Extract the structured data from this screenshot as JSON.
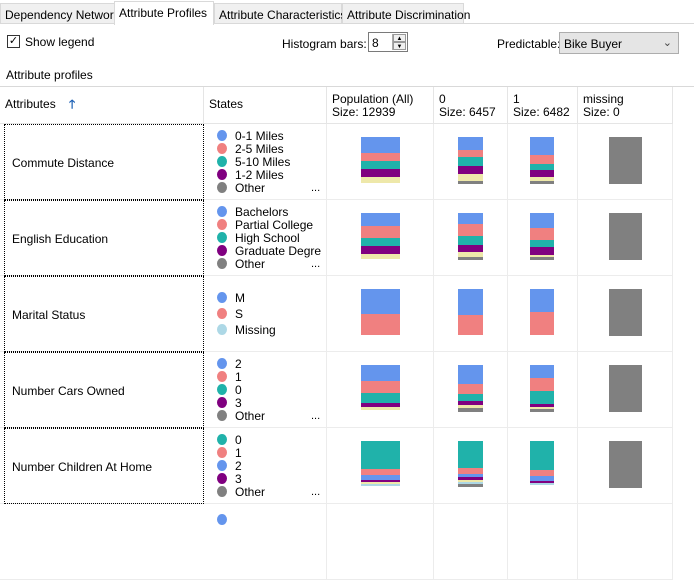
{
  "tabs": [
    {
      "label": "Dependency Network"
    },
    {
      "label": "Attribute Profiles",
      "active": true
    },
    {
      "label": "Attribute Characteristics"
    },
    {
      "label": "Attribute Discrimination"
    }
  ],
  "toolbar": {
    "show_legend_label": "Show legend",
    "show_legend_checked": true,
    "histogram_bars_label": "Histogram bars:",
    "histogram_bars_value": "8",
    "predictable_label": "Predictable:",
    "predictable_value": "Bike Buyer"
  },
  "section_title": "Attribute profiles",
  "colors": {
    "blue": "#6495ED",
    "pink": "#F08080",
    "teal": "#20B2AA",
    "purple": "#800080",
    "yellow": "#EEE8AA",
    "gray": "#808080",
    "lightblue": "#ADD8E6"
  },
  "columns": {
    "attributes": "Attributes",
    "sort_icon": "arrow-up-icon",
    "states": "States",
    "pop": {
      "name": "Population (All)",
      "size": "Size: 12939"
    },
    "c0": {
      "name": "0",
      "size": "Size: 6457"
    },
    "c1": {
      "name": "1",
      "size": "Size: 6482"
    },
    "missing": {
      "name": "missing",
      "size": "Size: 0"
    }
  },
  "ellipsis": "...",
  "rows": [
    {
      "attribute": "Commute Distance",
      "states": [
        {
          "label": "0-1 Miles",
          "color": "blue"
        },
        {
          "label": "2-5 Miles",
          "color": "pink"
        },
        {
          "label": "5-10 Miles",
          "color": "teal"
        },
        {
          "label": "1-2 Miles",
          "color": "purple"
        },
        {
          "label": "Other",
          "color": "gray"
        }
      ],
      "pop": [
        [
          "blue",
          34
        ],
        [
          "pink",
          17
        ],
        [
          "teal",
          17
        ],
        [
          "purple",
          17
        ],
        [
          "yellow",
          13
        ]
      ],
      "c0": [
        [
          "blue",
          27
        ],
        [
          "pink",
          16
        ],
        [
          "teal",
          19
        ],
        [
          "purple",
          17
        ],
        [
          "yellow",
          15
        ],
        [
          "gray",
          6
        ]
      ],
      "c1": [
        [
          "blue",
          38
        ],
        [
          "pink",
          19
        ],
        [
          "teal",
          13
        ],
        [
          "purple",
          15
        ],
        [
          "yellow",
          9
        ],
        [
          "gray",
          6
        ]
      ],
      "missing": [
        [
          "gray",
          100
        ]
      ],
      "more": true
    },
    {
      "attribute": "English Education",
      "states": [
        {
          "label": "Bachelors",
          "color": "blue"
        },
        {
          "label": "Partial College",
          "color": "pink"
        },
        {
          "label": "High School",
          "color": "teal"
        },
        {
          "label": "Graduate Degre",
          "color": "purple"
        },
        {
          "label": "Other",
          "color": "gray"
        }
      ],
      "pop": [
        [
          "blue",
          28
        ],
        [
          "pink",
          26
        ],
        [
          "teal",
          17
        ],
        [
          "purple",
          17
        ],
        [
          "yellow",
          9
        ]
      ],
      "c0": [
        [
          "blue",
          23
        ],
        [
          "pink",
          26
        ],
        [
          "teal",
          19
        ],
        [
          "purple",
          15
        ],
        [
          "yellow",
          11
        ],
        [
          "gray",
          6
        ]
      ],
      "c1": [
        [
          "blue",
          32
        ],
        [
          "pink",
          26
        ],
        [
          "teal",
          15
        ],
        [
          "purple",
          17
        ],
        [
          "yellow",
          4
        ],
        [
          "gray",
          6
        ]
      ],
      "missing": [
        [
          "gray",
          100
        ]
      ],
      "more": true
    },
    {
      "attribute": "Marital Status",
      "states": [
        {
          "label": "M",
          "color": "blue"
        },
        {
          "label": "S",
          "color": "pink"
        },
        {
          "label": "Missing",
          "color": "lightblue"
        }
      ],
      "pop": [
        [
          "blue",
          53
        ],
        [
          "pink",
          45
        ]
      ],
      "c0": [
        [
          "blue",
          55
        ],
        [
          "pink",
          43
        ]
      ],
      "c1": [
        [
          "blue",
          49
        ],
        [
          "pink",
          49
        ]
      ],
      "missing": [
        [
          "gray",
          100
        ]
      ],
      "more": false
    },
    {
      "attribute": "Number Cars Owned",
      "states": [
        {
          "label": "2",
          "color": "blue"
        },
        {
          "label": "1",
          "color": "pink"
        },
        {
          "label": "0",
          "color": "teal"
        },
        {
          "label": "3",
          "color": "purple"
        },
        {
          "label": "Other",
          "color": "gray"
        }
      ],
      "pop": [
        [
          "blue",
          34
        ],
        [
          "pink",
          26
        ],
        [
          "teal",
          21
        ],
        [
          "purple",
          9
        ],
        [
          "yellow",
          6
        ]
      ],
      "c0": [
        [
          "blue",
          40
        ],
        [
          "pink",
          21
        ],
        [
          "teal",
          15
        ],
        [
          "purple",
          9
        ],
        [
          "yellow",
          6
        ],
        [
          "gray",
          9
        ]
      ],
      "c1": [
        [
          "blue",
          28
        ],
        [
          "pink",
          28
        ],
        [
          "teal",
          28
        ],
        [
          "purple",
          6
        ],
        [
          "yellow",
          4
        ],
        [
          "gray",
          6
        ]
      ],
      "missing": [
        [
          "gray",
          100
        ]
      ],
      "more": true
    },
    {
      "attribute": "Number Children At Home",
      "states": [
        {
          "label": "0",
          "color": "teal"
        },
        {
          "label": "1",
          "color": "pink"
        },
        {
          "label": "2",
          "color": "blue"
        },
        {
          "label": "3",
          "color": "purple"
        },
        {
          "label": "Other",
          "color": "gray"
        }
      ],
      "pop": [
        [
          "teal",
          60
        ],
        [
          "pink",
          13
        ],
        [
          "blue",
          9
        ],
        [
          "purple",
          6
        ],
        [
          "yellow",
          4
        ],
        [
          "lightblue",
          4
        ]
      ],
      "c0": [
        [
          "teal",
          57
        ],
        [
          "pink",
          13
        ],
        [
          "blue",
          6
        ],
        [
          "purple",
          6
        ],
        [
          "yellow",
          6
        ],
        [
          "lightblue",
          4
        ],
        [
          "gray",
          6
        ]
      ],
      "c1": [
        [
          "teal",
          62
        ],
        [
          "pink",
          13
        ],
        [
          "blue",
          11
        ],
        [
          "purple",
          4
        ],
        [
          "lightblue",
          4
        ]
      ],
      "missing": [
        [
          "gray",
          100
        ]
      ],
      "more": true
    }
  ]
}
